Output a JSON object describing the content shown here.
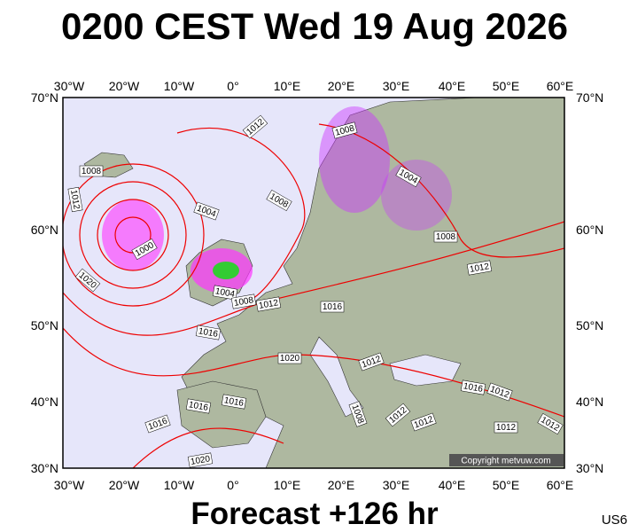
{
  "header": {
    "title": "0200 CEST Wed 19 Aug 2026"
  },
  "map": {
    "lon_labels": [
      "30°W",
      "20°W",
      "10°W",
      "0°",
      "10°E",
      "20°E",
      "30°E",
      "40°E",
      "50°E",
      "60°E"
    ],
    "lat_labels": [
      "70°N",
      "60°N",
      "50°N",
      "40°N",
      "30°N"
    ],
    "isobar_labels": [
      "1012",
      "1008",
      "1012",
      "1004",
      "1000",
      "1020",
      "1008",
      "1008",
      "1004",
      "1008",
      "1012",
      "1004",
      "1008",
      "1012",
      "1016",
      "1016",
      "1020",
      "1012",
      "1016",
      "1016",
      "1016",
      "1008",
      "1012",
      "1012",
      "1016",
      "1012",
      "1012",
      "1012",
      "1020"
    ],
    "copyright": "Copyright metvuw.com"
  },
  "footer": {
    "forecast": "Forecast +126 hr",
    "code": "US6"
  }
}
